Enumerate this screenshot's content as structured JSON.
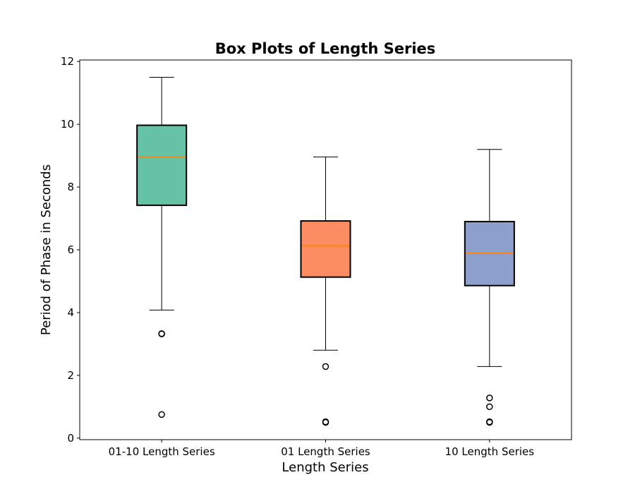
{
  "chart_data": {
    "type": "box",
    "title": "Box Plots of Length Series",
    "xlabel": "Length Series",
    "ylabel": "Period of Phase in Seconds",
    "ylim": [
      -0.05,
      12.05
    ],
    "yticks": [
      0,
      2,
      4,
      6,
      8,
      10,
      12
    ],
    "categories": [
      "01-10 Length Series",
      "01 Length Series",
      "10 Length Series"
    ],
    "boxes": [
      {
        "name": "01-10 Length Series",
        "whisker_low": 4.08,
        "q1": 7.42,
        "median": 8.95,
        "q3": 9.97,
        "whisker_high": 11.5,
        "outliers": [
          3.32,
          3.33,
          0.75
        ],
        "color": "#66c2a5"
      },
      {
        "name": "01 Length Series",
        "whisker_low": 2.8,
        "q1": 5.13,
        "median": 6.13,
        "q3": 6.92,
        "whisker_high": 8.96,
        "outliers": [
          2.28,
          0.5,
          0.52
        ],
        "color": "#fc8d62"
      },
      {
        "name": "10 Length Series",
        "whisker_low": 2.28,
        "q1": 4.86,
        "median": 5.9,
        "q3": 6.9,
        "whisker_high": 9.2,
        "outliers": [
          1.28,
          1.0,
          0.5,
          0.52
        ],
        "color": "#8da0cb"
      }
    ],
    "median_color": "#ff7f0e",
    "grid": false,
    "legend": "none"
  }
}
